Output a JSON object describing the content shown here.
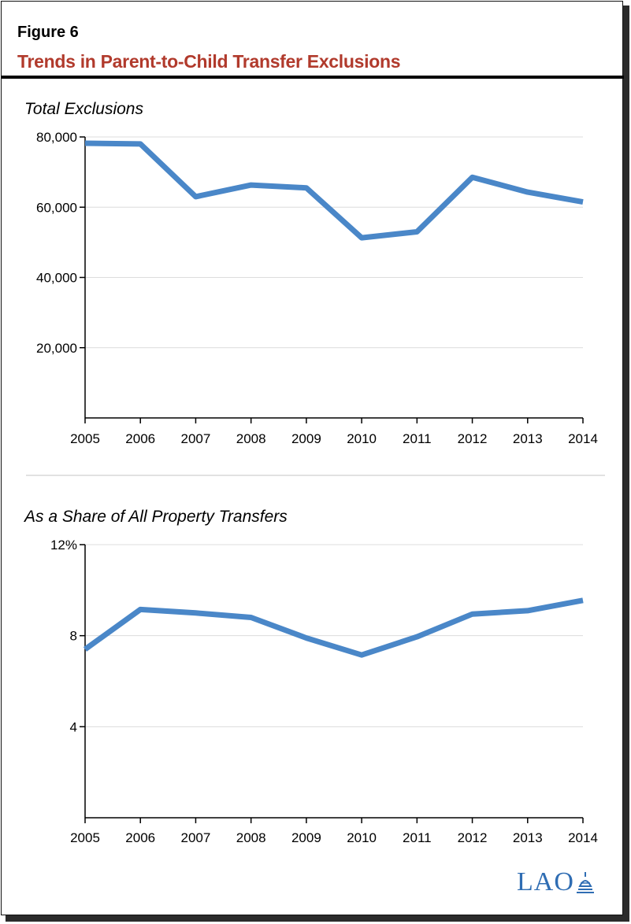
{
  "figure": {
    "label": "Figure 6",
    "title": "Trends in Parent-to-Child Transfer Exclusions"
  },
  "chart_data": [
    {
      "type": "line",
      "title": "Total Exclusions",
      "x": [
        "2005",
        "2006",
        "2007",
        "2008",
        "2009",
        "2010",
        "2011",
        "2012",
        "2013",
        "2014"
      ],
      "series": [
        {
          "values": [
            78200,
            78000,
            63000,
            66300,
            65500,
            51300,
            53000,
            68500,
            64300,
            61500
          ]
        }
      ],
      "ylim": [
        0,
        80000
      ],
      "yticks": [
        20000,
        40000,
        60000,
        80000
      ],
      "ytick_labels": [
        "20,000",
        "40,000",
        "60,000",
        "80,000"
      ],
      "grid": true,
      "color": "#4a87c8"
    },
    {
      "type": "line",
      "title": "As a Share of All Property Transfers",
      "x": [
        "2005",
        "2006",
        "2007",
        "2008",
        "2009",
        "2010",
        "2011",
        "2012",
        "2013",
        "2014"
      ],
      "series": [
        {
          "values": [
            7.4,
            9.15,
            9.0,
            8.8,
            7.9,
            7.15,
            7.95,
            8.95,
            9.1,
            9.55
          ]
        }
      ],
      "ylim": [
        0,
        12
      ],
      "yticks": [
        4,
        8,
        12
      ],
      "ytick_labels": [
        "4",
        "8",
        "12%"
      ],
      "grid": true,
      "color": "#4a87c8"
    }
  ],
  "logo": {
    "text": "LAO"
  }
}
